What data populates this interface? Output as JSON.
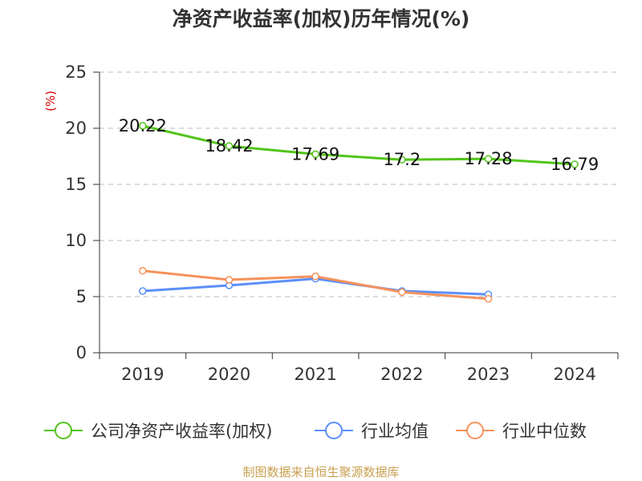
{
  "chart_data": {
    "type": "line",
    "title": "净资产收益率(加权)历年情况(%)",
    "ylabel": "(%)",
    "categories": [
      "2019",
      "2020",
      "2021",
      "2022",
      "2023",
      "2024"
    ],
    "ylim": [
      0,
      25
    ],
    "yticks": [
      0,
      5,
      10,
      15,
      20,
      25
    ],
    "grid": true,
    "legend_position": "bottom",
    "series": [
      {
        "name": "公司净资产收益率(加权)",
        "color": "#52c41a",
        "values": [
          20.22,
          18.42,
          17.69,
          17.2,
          17.28,
          16.79
        ],
        "labels": [
          "20.22",
          "18.42",
          "17.69",
          "17.2",
          "17.28",
          "16.79"
        ]
      },
      {
        "name": "行业均值",
        "color": "#5b8ff9",
        "values": [
          5.5,
          6.0,
          6.6,
          5.5,
          5.2,
          null
        ]
      },
      {
        "name": "行业中位数",
        "color": "#f6915a",
        "values": [
          7.3,
          6.5,
          6.8,
          5.4,
          4.8,
          null
        ]
      }
    ]
  },
  "source": "制图数据来自恒生聚源数据库"
}
